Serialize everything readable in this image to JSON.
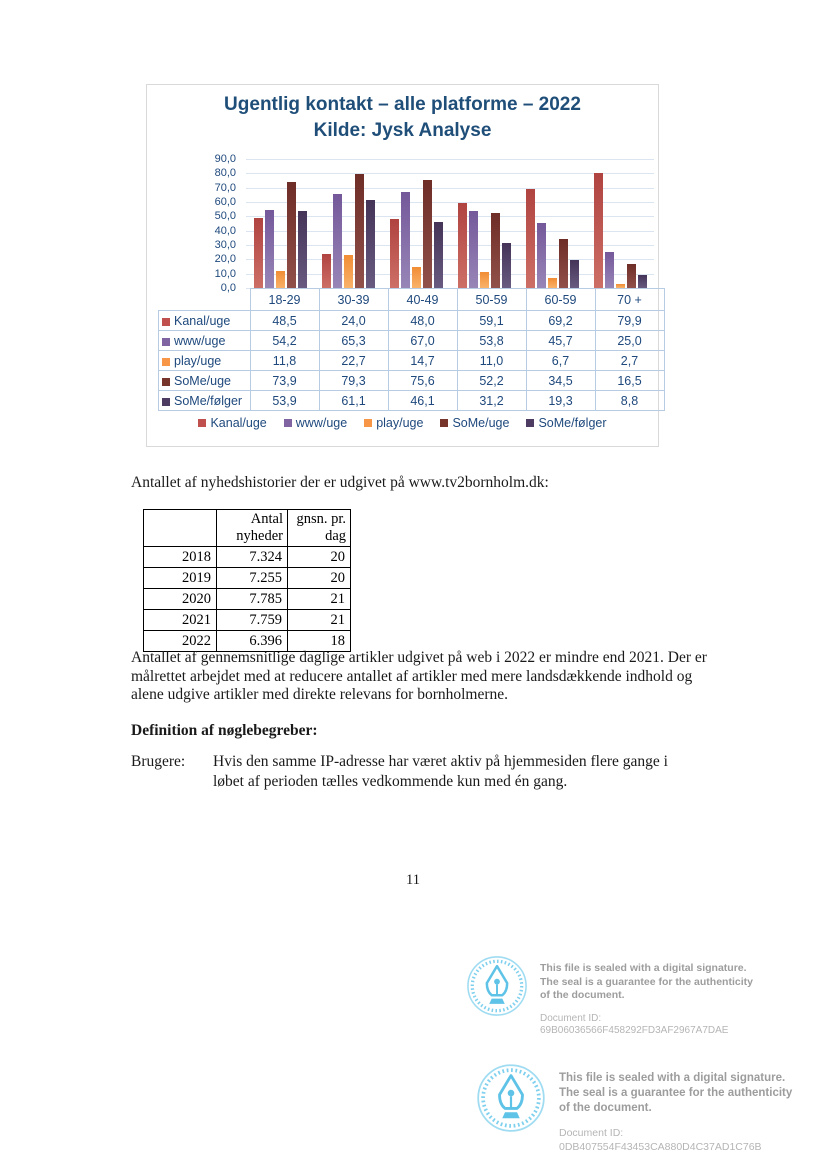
{
  "chart": {
    "title_line1": "Ugentlig kontakt – alle platforme – 2022",
    "title_line2": "Kilde: Jysk Analyse"
  },
  "chart_data": {
    "type": "bar",
    "title": "Ugentlig kontakt – alle platforme – 2022",
    "subtitle": "Kilde: Jysk Analyse",
    "categories": [
      "18-29",
      "30-39",
      "40-49",
      "50-59",
      "60-59",
      "70 +"
    ],
    "series": [
      {
        "name": "Kanal/uge",
        "color": "#c0504d",
        "color_dark": "#b04340",
        "color_light": "#cd6f66",
        "values": [
          48.5,
          24.0,
          48.0,
          59.1,
          69.2,
          79.9
        ],
        "labels": [
          "48,5",
          "24,0",
          "48,0",
          "59,1",
          "69,2",
          "79,9"
        ]
      },
      {
        "name": "www/uge",
        "color": "#8064a2",
        "color_dark": "#74589a",
        "color_light": "#9886b7",
        "values": [
          54.2,
          65.3,
          67.0,
          53.8,
          45.7,
          25.0
        ],
        "labels": [
          "54,2",
          "65,3",
          "67,0",
          "53,8",
          "45,7",
          "25,0"
        ]
      },
      {
        "name": "play/uge",
        "color": "#f79646",
        "color_dark": "#f18d35",
        "color_light": "#f9b269",
        "values": [
          11.8,
          22.7,
          14.7,
          11.0,
          6.7,
          2.7
        ],
        "labels": [
          "11,8",
          "22,7",
          "14,7",
          "11,0",
          "6,7",
          "2,7"
        ]
      },
      {
        "name": "SoMe/uge",
        "color": "#77342b",
        "color_dark": "#6e2d26",
        "color_light": "#91504a",
        "values": [
          73.9,
          79.3,
          75.6,
          52.2,
          34.5,
          16.5
        ],
        "labels": [
          "73,9",
          "79,3",
          "75,6",
          "52,2",
          "34,5",
          "16,5"
        ]
      },
      {
        "name": "SoMe/følger",
        "color": "#4d3b62",
        "color_dark": "#453458",
        "color_light": "#685a80",
        "values": [
          53.9,
          61.1,
          46.1,
          31.2,
          19.3,
          8.8
        ],
        "labels": [
          "53,9",
          "61,1",
          "46,1",
          "31,2",
          "19,3",
          "8,8"
        ]
      }
    ],
    "ylim": [
      0,
      90
    ],
    "ytick_step": 10,
    "ytick_labels": [
      "90,0",
      "80,0",
      "70,0",
      "60,0",
      "50,0",
      "40,0",
      "30,0",
      "20,0",
      "10,0",
      "0,0"
    ],
    "grid": true,
    "legend_position": "bottom",
    "text_color": "#1f497d"
  },
  "intro_text": "Antallet af nyhedshistorier der er udgivet på www.tv2bornholm.dk:",
  "news_table": {
    "header_col2": "Antal nyheder",
    "header_col3": "gnsn. pr. dag",
    "rows": [
      [
        "2018",
        "7.324",
        "20"
      ],
      [
        "2019",
        "7.255",
        "20"
      ],
      [
        "2020",
        "7.785",
        "21"
      ],
      [
        "2021",
        "7.759",
        "21"
      ],
      [
        "2022",
        "6.396",
        "18"
      ]
    ]
  },
  "paragraph": "Antallet af gennemsnitlige daglige artikler udgivet på web i 2022 er mindre end 2021. Der er målrettet arbejdet med at reducere antallet af artikler med mere landsdækkende indhold og alene udgive artikler med direkte relevans for bornholmerne.",
  "definitions": {
    "heading": "Definition af nøglebegreber:",
    "term": "Brugere:",
    "description": "Hvis den samme IP-adresse har været aktiv på hjemmesiden flere gange i løbet af perioden tælles vedkommende kun med én gang."
  },
  "page_number": "11",
  "seals": [
    {
      "line1": "This file is sealed with a digital signature.",
      "line2": "The seal is a guarantee for the authenticity",
      "line3": "of the document.",
      "doc_id_label": "Document ID:",
      "doc_id": "69B06036566F458292FD3AF2967A7DAE"
    },
    {
      "line1": "This file is sealed with a digital signature.",
      "line2": "The seal is a guarantee for the authenticity",
      "line3": "of the document.",
      "doc_id_label": "Document ID:",
      "doc_id": "0DB407554F43453CA880D4C37AD1C76B"
    }
  ],
  "seal_color": "#5fc3e7"
}
